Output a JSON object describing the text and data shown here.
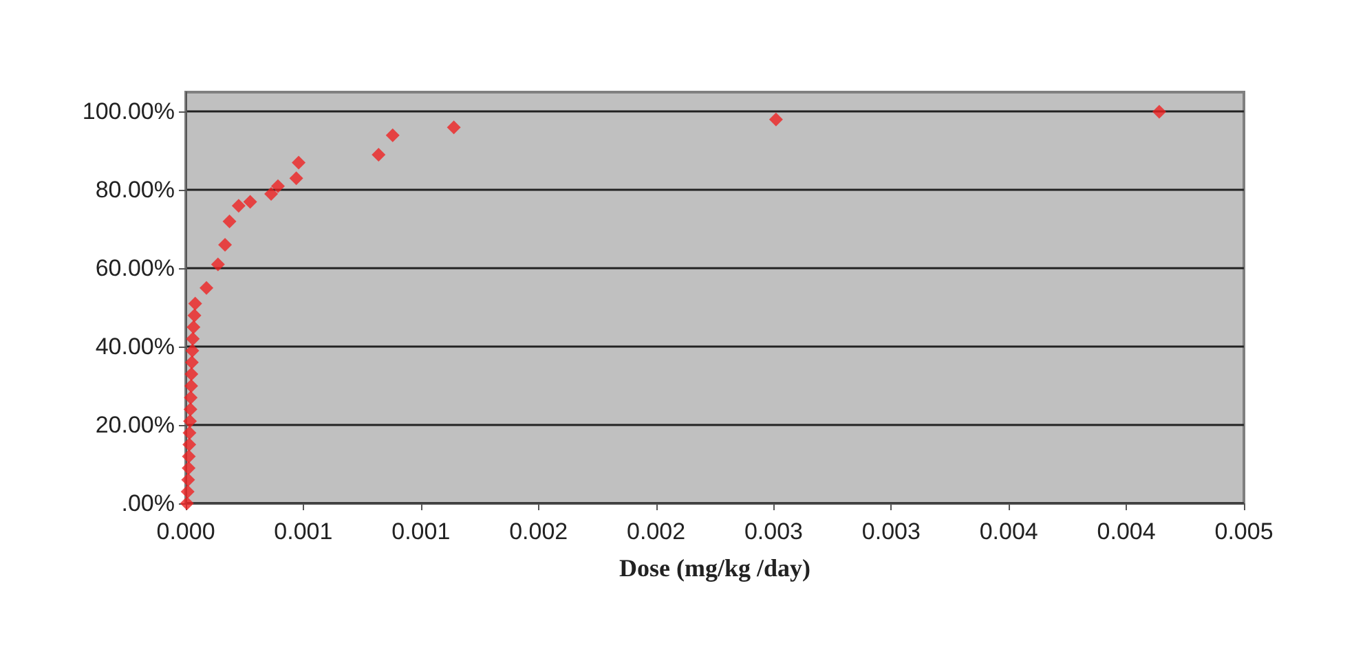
{
  "chart_data": {
    "type": "scatter",
    "xlabel": "Dose (mg/kg /day)",
    "x": [
      5e-06,
      8e-06,
      1e-05,
      1.2e-05,
      1.3e-05,
      1.5e-05,
      1.6e-05,
      1.8e-05,
      2e-05,
      2.1e-05,
      2.3e-05,
      2.4e-05,
      2.6e-05,
      2.8e-05,
      3e-05,
      3.3e-05,
      3.7e-05,
      4e-05,
      8.8e-05,
      0.000137,
      0.000167,
      0.000186,
      0.000225,
      0.000274,
      0.000363,
      0.000392,
      0.00047,
      0.00048,
      0.00082,
      0.00088,
      0.00114,
      0.00251,
      0.00414
    ],
    "series": [
      {
        "color": "#ee2222",
        "values": [
          0,
          0.03,
          0.06,
          0.09,
          0.12,
          0.15,
          0.18,
          0.21,
          0.24,
          0.27,
          0.3,
          0.33,
          0.36,
          0.39,
          0.42,
          0.45,
          0.48,
          0.51,
          0.55,
          0.61,
          0.66,
          0.72,
          0.76,
          0.77,
          0.79,
          0.81,
          0.83,
          0.87,
          0.89,
          0.94,
          0.96,
          0.98,
          1.0
        ]
      }
    ],
    "xlim": [
      0,
      0.0045
    ],
    "xticks": [
      {
        "value": 0,
        "label": "0.000"
      },
      {
        "value": 0.0005,
        "label": "0.001"
      },
      {
        "value": 0.001,
        "label": "0.001"
      },
      {
        "value": 0.0015,
        "label": "0.002"
      },
      {
        "value": 0.002,
        "label": "0.002"
      },
      {
        "value": 0.0025,
        "label": "0.003"
      },
      {
        "value": 0.003,
        "label": "0.003"
      },
      {
        "value": 0.0035,
        "label": "0.004"
      },
      {
        "value": 0.004,
        "label": "0.004"
      },
      {
        "value": 0.0045,
        "label": "0.005"
      }
    ],
    "ylim": [
      0,
      1.05
    ],
    "yticks": [
      {
        "value": 0,
        "label": ".00%"
      },
      {
        "value": 0.2,
        "label": "20.00%"
      },
      {
        "value": 0.4,
        "label": "40.00%"
      },
      {
        "value": 0.6,
        "label": "60.00%"
      },
      {
        "value": 0.8,
        "label": "80.00%"
      },
      {
        "value": 1,
        "label": "100.00%"
      }
    ],
    "grid": "y",
    "marker": "diamond"
  }
}
